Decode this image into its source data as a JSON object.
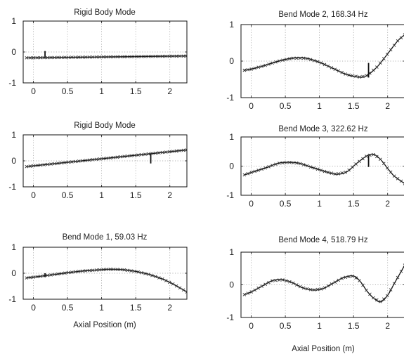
{
  "chart_data": [
    {
      "type": "line",
      "title": "Rigid Body Mode",
      "xlabel": "",
      "xlim": [
        -0.15,
        2.25
      ],
      "ylim": [
        -1,
        1
      ],
      "xticks": [
        0,
        0.5,
        1,
        1.5,
        2
      ],
      "xtick_labels": [
        "0",
        "0.5",
        "1",
        "1.5",
        "2"
      ],
      "yticks": [
        -1,
        0,
        1
      ],
      "ytick_labels": [
        "-1",
        "0",
        "1"
      ],
      "grid": true,
      "series": [
        {
          "x": [
            -0.1,
            2.25
          ],
          "y": [
            -0.19,
            -0.13
          ]
        }
      ],
      "sensors": [
        {
          "x": 0.17,
          "y0": -0.17,
          "y1": 0.03
        }
      ]
    },
    {
      "type": "line",
      "title": "Bend Mode 2, 168.34 Hz",
      "xlabel": "",
      "xlim": [
        -0.15,
        2.25
      ],
      "ylim": [
        -1,
        1
      ],
      "xticks": [
        0,
        0.5,
        1,
        1.5,
        2
      ],
      "xtick_labels": [
        "0",
        "0.5",
        "1",
        "1.5",
        "2"
      ],
      "yticks": [
        -1,
        0,
        1
      ],
      "ytick_labels": [
        "-1",
        "0",
        "1"
      ],
      "grid": true,
      "series": [
        {
          "x": [
            -0.1,
            0.0,
            0.2,
            0.4,
            0.6,
            0.8,
            1.0,
            1.2,
            1.4,
            1.6,
            1.7,
            1.85,
            2.0,
            2.15,
            2.25
          ],
          "y": [
            -0.25,
            -0.22,
            -0.12,
            0.0,
            0.08,
            0.08,
            -0.03,
            -0.2,
            -0.37,
            -0.44,
            -0.39,
            -0.15,
            0.2,
            0.56,
            0.72
          ]
        }
      ],
      "sensors": [
        {
          "x": 1.72,
          "y0": -0.45,
          "y1": -0.05
        }
      ]
    },
    {
      "type": "line",
      "title": "Rigid Body Mode",
      "xlabel": "",
      "xlim": [
        -0.15,
        2.25
      ],
      "ylim": [
        -1,
        1
      ],
      "xticks": [
        0,
        0.5,
        1,
        1.5,
        2
      ],
      "xtick_labels": [
        "0",
        "0.5",
        "1",
        "1.5",
        "2"
      ],
      "yticks": [
        -1,
        0,
        1
      ],
      "ytick_labels": [
        "-1",
        "0",
        "1"
      ],
      "grid": true,
      "series": [
        {
          "x": [
            -0.1,
            2.25
          ],
          "y": [
            -0.22,
            0.42
          ]
        }
      ],
      "sensors": [
        {
          "x": 1.72,
          "y0": 0.27,
          "y1": -0.1
        }
      ]
    },
    {
      "type": "line",
      "title": "Bend Mode 3, 322.62 Hz",
      "xlabel": "",
      "xlim": [
        -0.15,
        2.25
      ],
      "ylim": [
        -1,
        1
      ],
      "xticks": [
        0,
        0.5,
        1,
        1.5,
        2
      ],
      "xtick_labels": [
        "0",
        "0.5",
        "1",
        "1.5",
        "2"
      ],
      "yticks": [
        -1,
        0,
        1
      ],
      "ytick_labels": [
        "-1",
        "0",
        "1"
      ],
      "grid": true,
      "series": [
        {
          "x": [
            -0.1,
            0.0,
            0.2,
            0.4,
            0.55,
            0.7,
            0.9,
            1.1,
            1.25,
            1.4,
            1.55,
            1.7,
            1.8,
            1.9,
            2.0,
            2.1,
            2.25
          ],
          "y": [
            -0.3,
            -0.22,
            -0.07,
            0.1,
            0.13,
            0.1,
            -0.05,
            -0.2,
            -0.28,
            -0.2,
            0.1,
            0.36,
            0.4,
            0.22,
            -0.08,
            -0.35,
            -0.6
          ]
        }
      ],
      "sensors": [
        {
          "x": 1.72,
          "y0": 0.36,
          "y1": -0.03
        }
      ]
    },
    {
      "type": "line",
      "title": "Bend Mode 1, 59.03 Hz",
      "xlabel": "Axial Position (m)",
      "xlim": [
        -0.15,
        2.25
      ],
      "ylim": [
        -1,
        1
      ],
      "xticks": [
        0,
        0.5,
        1,
        1.5,
        2
      ],
      "xtick_labels": [
        "0",
        "0.5",
        "1",
        "1.5",
        "2"
      ],
      "yticks": [
        -1,
        0,
        1
      ],
      "ytick_labels": [
        "-1",
        "0",
        "1"
      ],
      "grid": true,
      "series": [
        {
          "x": [
            -0.1,
            0.1,
            0.3,
            0.5,
            0.7,
            0.9,
            1.1,
            1.3,
            1.5,
            1.7,
            1.9,
            2.05,
            2.25
          ],
          "y": [
            -0.18,
            -0.12,
            -0.05,
            0.02,
            0.08,
            0.12,
            0.15,
            0.14,
            0.07,
            -0.05,
            -0.23,
            -0.42,
            -0.72
          ]
        }
      ],
      "sensors": [
        {
          "x": 0.17,
          "y0": -0.15,
          "y1": 0.0
        }
      ]
    },
    {
      "type": "line",
      "title": "Bend Mode 4, 518.79 Hz",
      "xlabel": "Axial Position (m)",
      "xlim": [
        -0.15,
        2.25
      ],
      "ylim": [
        -1,
        1
      ],
      "xticks": [
        0,
        0.5,
        1,
        1.5,
        2
      ],
      "xtick_labels": [
        "0",
        "0.5",
        "1",
        "1.5",
        "2"
      ],
      "yticks": [
        -1,
        0,
        1
      ],
      "ytick_labels": [
        "-1",
        "0",
        "1"
      ],
      "grid": true,
      "series": [
        {
          "x": [
            -0.1,
            0.0,
            0.15,
            0.3,
            0.45,
            0.6,
            0.75,
            0.9,
            1.05,
            1.2,
            1.35,
            1.5,
            1.6,
            1.7,
            1.8,
            1.9,
            2.0,
            2.1,
            2.25
          ],
          "y": [
            -0.3,
            -0.22,
            -0.05,
            0.12,
            0.16,
            0.07,
            -0.09,
            -0.16,
            -0.12,
            0.05,
            0.22,
            0.27,
            0.1,
            -0.2,
            -0.42,
            -0.52,
            -0.32,
            0.05,
            0.6
          ]
        }
      ],
      "sensors": []
    }
  ]
}
